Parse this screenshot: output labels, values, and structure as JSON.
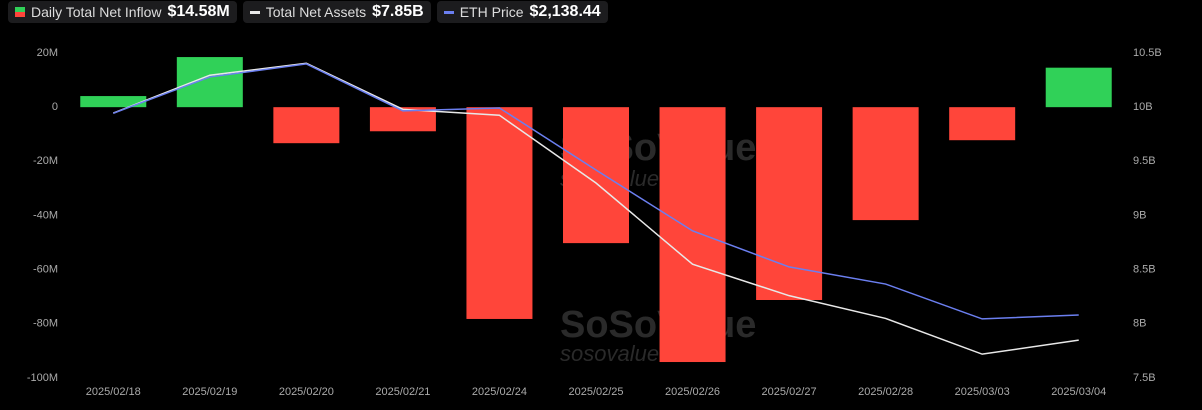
{
  "chart_data": {
    "type": "combo",
    "categories": [
      "2025/02/18",
      "2025/02/19",
      "2025/02/20",
      "2025/02/21",
      "2025/02/24",
      "2025/02/25",
      "2025/02/26",
      "2025/02/27",
      "2025/02/28",
      "2025/03/03",
      "2025/03/04"
    ],
    "series": [
      {
        "name": "Daily Total Net Inflow",
        "type": "bar",
        "color": "#30d158",
        "negative_color": "#ff453a",
        "legend_value": "$14.58M",
        "values": [
          4.1,
          18.5,
          -13.3,
          -8.9,
          -78.2,
          -50.2,
          -94.1,
          -71.2,
          -41.7,
          -12.2,
          14.58
        ]
      },
      {
        "name": "Total Net Assets",
        "type": "line",
        "axis": "y2",
        "color": "#e8e8e8",
        "legend_value": "$7.85B",
        "values": [
          9.945,
          10.295,
          10.405,
          9.98,
          9.925,
          9.3,
          8.55,
          8.26,
          8.05,
          7.72,
          7.85
        ]
      },
      {
        "name": "ETH Price",
        "type": "line",
        "axis": "y3",
        "color": "#6b7ff0",
        "legend_value": "$2,138.44",
        "values": [
          2821,
          2944,
          2988,
          2829,
          2839,
          2629,
          2423,
          2301,
          2243,
          2125,
          2138.44
        ]
      }
    ],
    "ylim": [
      -100,
      20
    ],
    "yticks": [
      {
        "value": 20,
        "label": "20M"
      },
      0,
      {
        "value": -20,
        "label": "-20M"
      },
      {
        "value": -40,
        "label": "-40M"
      },
      {
        "value": -60,
        "label": "-60M"
      },
      {
        "value": -80,
        "label": "-80M"
      },
      {
        "value": -100,
        "label": "-100M"
      }
    ],
    "y2lim": [
      7.5,
      10.5
    ],
    "y2ticks": [
      {
        "value": 10.5,
        "label": "10.5B"
      },
      {
        "value": 10,
        "label": "10B"
      },
      {
        "value": 9.5,
        "label": "9.5B"
      },
      {
        "value": 9,
        "label": "9B"
      },
      {
        "value": 8.5,
        "label": "8.5B"
      },
      {
        "value": 8,
        "label": "8B"
      },
      {
        "value": 7.5,
        "label": "7.5B"
      }
    ],
    "y3lim": [
      1925,
      3025
    ],
    "watermark": "SoSoValue",
    "watermark_sub": "sosovalue."
  }
}
